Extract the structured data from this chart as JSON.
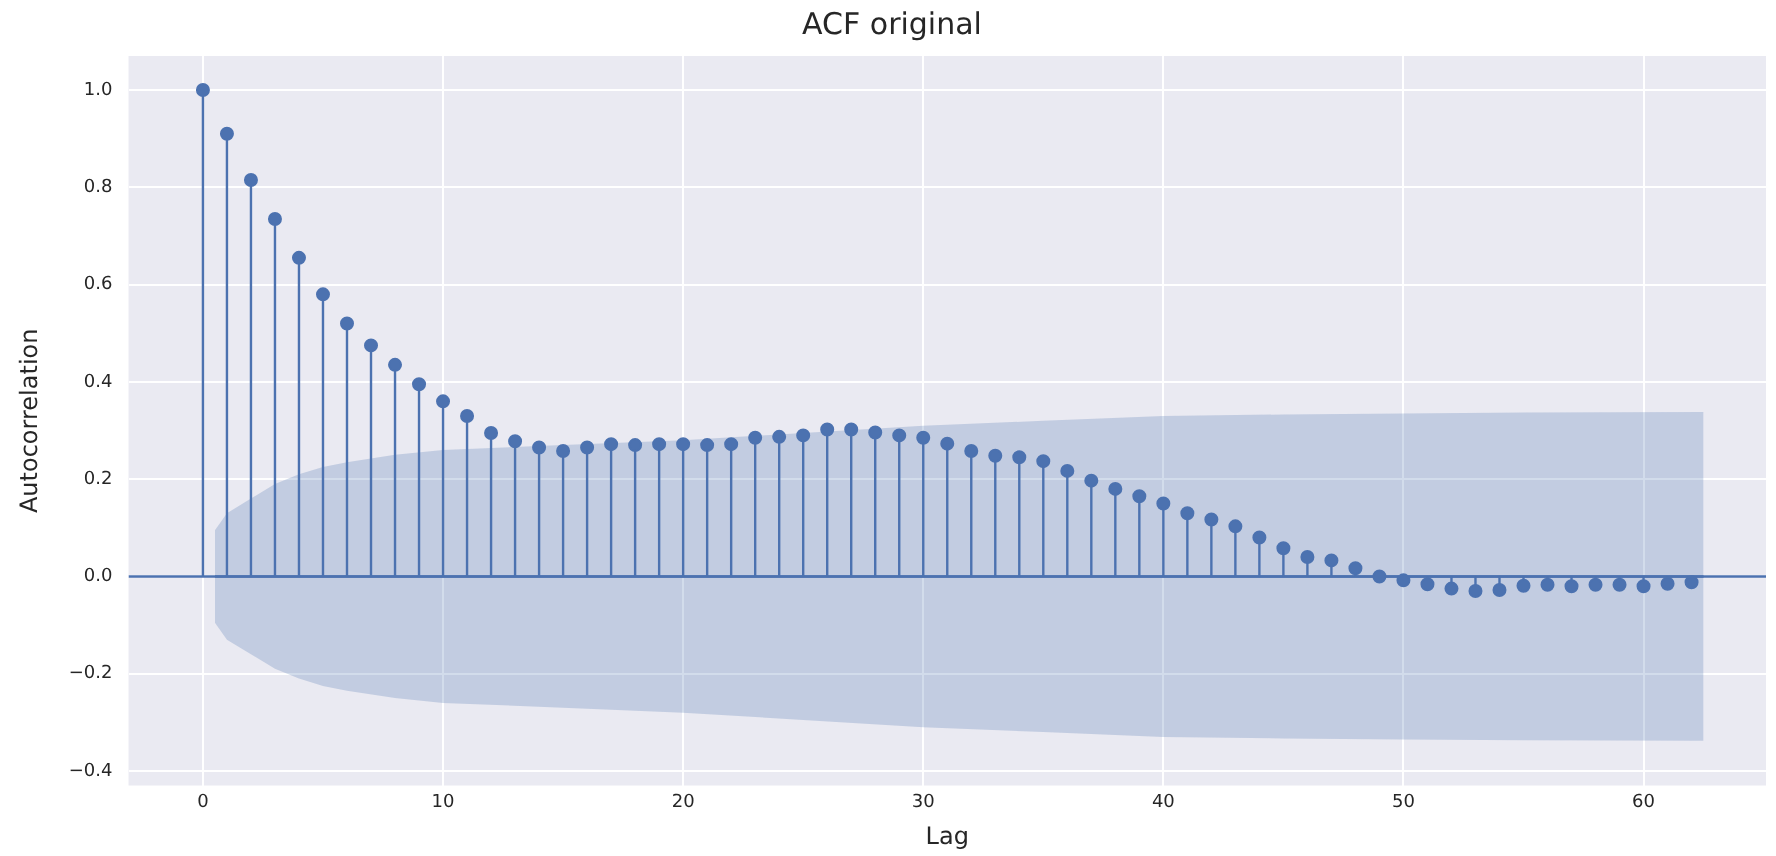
{
  "chart_data": {
    "type": "lollipop",
    "title": "ACF original",
    "xlabel": "Lag",
    "ylabel": "Autocorrelation",
    "xlim": [
      -3.1,
      65.1
    ],
    "ylim": [
      -0.43,
      1.07
    ],
    "xticks": [
      0,
      10,
      20,
      30,
      40,
      50,
      60
    ],
    "yticks": [
      {
        "value": -0.4,
        "label": "−0.4"
      },
      {
        "value": -0.2,
        "label": "−0.2"
      },
      {
        "value": 0,
        "label": "0.0"
      },
      0.2,
      0.4,
      0.6,
      0.8,
      {
        "value": 1,
        "label": "1.0"
      }
    ],
    "grid": true,
    "legend": false,
    "ref_lines": [
      {
        "axis": "y",
        "value": 0,
        "color": "#4c72b0"
      }
    ],
    "x": [
      0,
      1,
      2,
      3,
      4,
      5,
      6,
      7,
      8,
      9,
      10,
      11,
      12,
      13,
      14,
      15,
      16,
      17,
      18,
      19,
      20,
      21,
      22,
      23,
      24,
      25,
      26,
      27,
      28,
      29,
      30,
      31,
      32,
      33,
      34,
      35,
      36,
      37,
      38,
      39,
      40,
      41,
      42,
      43,
      44,
      45,
      46,
      47,
      48,
      49,
      50,
      51,
      52,
      53,
      54,
      55,
      56,
      57,
      58,
      59,
      60,
      61,
      62
    ],
    "series": [
      {
        "marker": "circle",
        "color": "#4c72b0",
        "values": [
          1.0,
          0.91,
          0.815,
          0.735,
          0.655,
          0.58,
          0.52,
          0.475,
          0.435,
          0.395,
          0.36,
          0.33,
          0.295,
          0.278,
          0.265,
          0.258,
          0.265,
          0.272,
          0.27,
          0.272,
          0.272,
          0.27,
          0.272,
          0.285,
          0.287,
          0.29,
          0.302,
          0.302,
          0.296,
          0.29,
          0.285,
          0.273,
          0.258,
          0.248,
          0.245,
          0.237,
          0.217,
          0.197,
          0.18,
          0.165,
          0.15,
          0.13,
          0.117,
          0.103,
          0.08,
          0.058,
          0.04,
          0.033,
          0.017,
          0.0,
          -0.008,
          -0.016,
          -0.025,
          -0.03,
          -0.028,
          -0.019,
          -0.017,
          -0.02,
          -0.017,
          -0.017,
          -0.02,
          -0.015,
          -0.012
        ]
      },
      {
        "type": "line",
        "color": "#4c72b0",
        "marker": "none",
        "x": [
          0.5,
          1,
          2,
          3,
          4,
          5,
          6,
          8,
          10,
          15,
          20,
          25,
          30,
          35,
          40,
          45,
          50,
          55,
          62.5
        ],
        "values": [
          0,
          0,
          0,
          0,
          0,
          0,
          0,
          0,
          0,
          0,
          0,
          0,
          0,
          0,
          0,
          0,
          0,
          0,
          0
        ],
        "upper": [
          0.095,
          0.13,
          0.16,
          0.19,
          0.21,
          0.225,
          0.235,
          0.25,
          0.26,
          0.27,
          0.28,
          0.295,
          0.31,
          0.32,
          0.33,
          0.333,
          0.335,
          0.337,
          0.338
        ],
        "lower": [
          -0.095,
          -0.13,
          -0.16,
          -0.19,
          -0.21,
          -0.225,
          -0.235,
          -0.25,
          -0.26,
          -0.27,
          -0.28,
          -0.295,
          -0.31,
          -0.32,
          -0.33,
          -0.333,
          -0.335,
          -0.337,
          -0.338
        ]
      }
    ]
  }
}
